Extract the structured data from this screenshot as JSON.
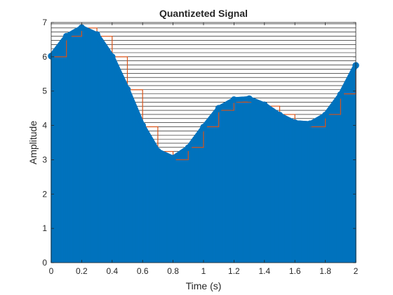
{
  "chart_data": {
    "type": "line",
    "title": "Quantizeted Signal",
    "xlabel": "Time (s)",
    "ylabel": "Amplitude",
    "xlim": [
      0,
      2
    ],
    "ylim": [
      0,
      7
    ],
    "xticks": [
      0,
      0.2,
      0.4,
      0.6,
      0.8,
      1,
      1.2,
      1.4,
      1.6,
      1.8,
      2
    ],
    "xtick_labels": [
      "0",
      "0.2",
      "0.4",
      "0.6",
      "0.8",
      "1",
      "1.2",
      "1.4",
      "1.6",
      "1.8",
      "2"
    ],
    "yticks": [
      0,
      1,
      2,
      3,
      4,
      5,
      6,
      7
    ],
    "ytick_labels": [
      "0",
      "1",
      "2",
      "3",
      "4",
      "5",
      "6",
      "7"
    ],
    "quantization_levels": [
      3.0,
      3.12,
      3.24,
      3.36,
      3.48,
      3.6,
      3.72,
      3.84,
      3.96,
      4.08,
      4.2,
      4.32,
      4.44,
      4.56,
      4.68,
      4.8,
      4.92,
      5.04,
      5.16,
      5.28,
      5.4,
      5.52,
      5.64,
      5.76,
      5.88,
      6.0,
      6.12,
      6.24,
      6.36,
      6.48,
      6.6,
      6.72,
      6.84,
      6.96
    ],
    "series": [
      {
        "kind": "stem",
        "color": "#0072bd",
        "x": [
          0,
          0.1,
          0.2,
          0.3,
          0.4,
          0.5,
          0.6,
          0.7,
          0.8,
          0.9,
          1.0,
          1.1,
          1.2,
          1.3,
          1.4,
          1.5,
          1.6,
          1.7,
          1.8,
          1.9,
          2.0
        ],
        "y": [
          6.02,
          6.6,
          6.85,
          6.65,
          6.0,
          5.05,
          4.0,
          3.25,
          3.05,
          3.35,
          3.95,
          4.5,
          4.75,
          4.78,
          4.6,
          4.3,
          4.08,
          4.05,
          4.3,
          4.9,
          5.75
        ]
      },
      {
        "kind": "staircase",
        "color": "#d95319",
        "x": [
          0,
          0.1,
          0.2,
          0.3,
          0.4,
          0.5,
          0.6,
          0.7,
          0.8,
          0.9,
          1.0,
          1.1,
          1.2,
          1.3,
          1.4,
          1.5,
          1.6,
          1.7,
          1.8,
          1.9,
          2.0
        ],
        "y": [
          6.0,
          6.6,
          6.84,
          6.6,
          6.0,
          5.04,
          3.96,
          3.24,
          3.0,
          3.36,
          3.96,
          4.44,
          4.68,
          4.68,
          4.56,
          4.32,
          4.08,
          3.96,
          4.32,
          4.92,
          5.76
        ]
      }
    ]
  }
}
